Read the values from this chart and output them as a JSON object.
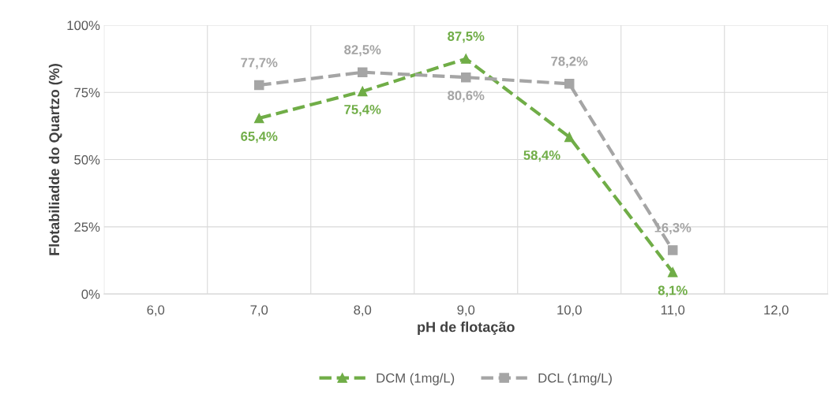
{
  "chart_data": {
    "type": "line",
    "xlabel": "pH de flotação",
    "ylabel": "Flotabiliadde do Quartzo (%)",
    "categories": [
      "6,0",
      "7,0",
      "8,0",
      "9,0",
      "10,0",
      "11,0",
      "12,0"
    ],
    "series": [
      {
        "name": "DCM (1mg/L)",
        "color": "#70ad47",
        "marker": "triangle",
        "values": [
          null,
          65.4,
          75.4,
          87.5,
          58.4,
          8.1,
          null
        ],
        "value_labels": [
          null,
          "65,4%",
          "75,4%",
          "87,5%",
          "58,4%",
          "8,1%",
          null
        ]
      },
      {
        "name": "DCL (1mg/L)",
        "color": "#a5a5a5",
        "marker": "square",
        "values": [
          null,
          77.7,
          82.5,
          80.6,
          78.2,
          16.3,
          null
        ],
        "value_labels": [
          null,
          "77,7%",
          "82,5%",
          "80,6%",
          "78,2%",
          "16,3%",
          null
        ]
      }
    ],
    "ylim": [
      0,
      100
    ],
    "yticks": [
      {
        "value": 0,
        "label": "0%"
      },
      {
        "value": 25,
        "label": "25%"
      },
      {
        "value": 50,
        "label": "50%"
      },
      {
        "value": 75,
        "label": "75%"
      },
      {
        "value": 100,
        "label": "100%"
      }
    ],
    "grid": true,
    "legend": "bottom",
    "line_style": "dashed"
  }
}
